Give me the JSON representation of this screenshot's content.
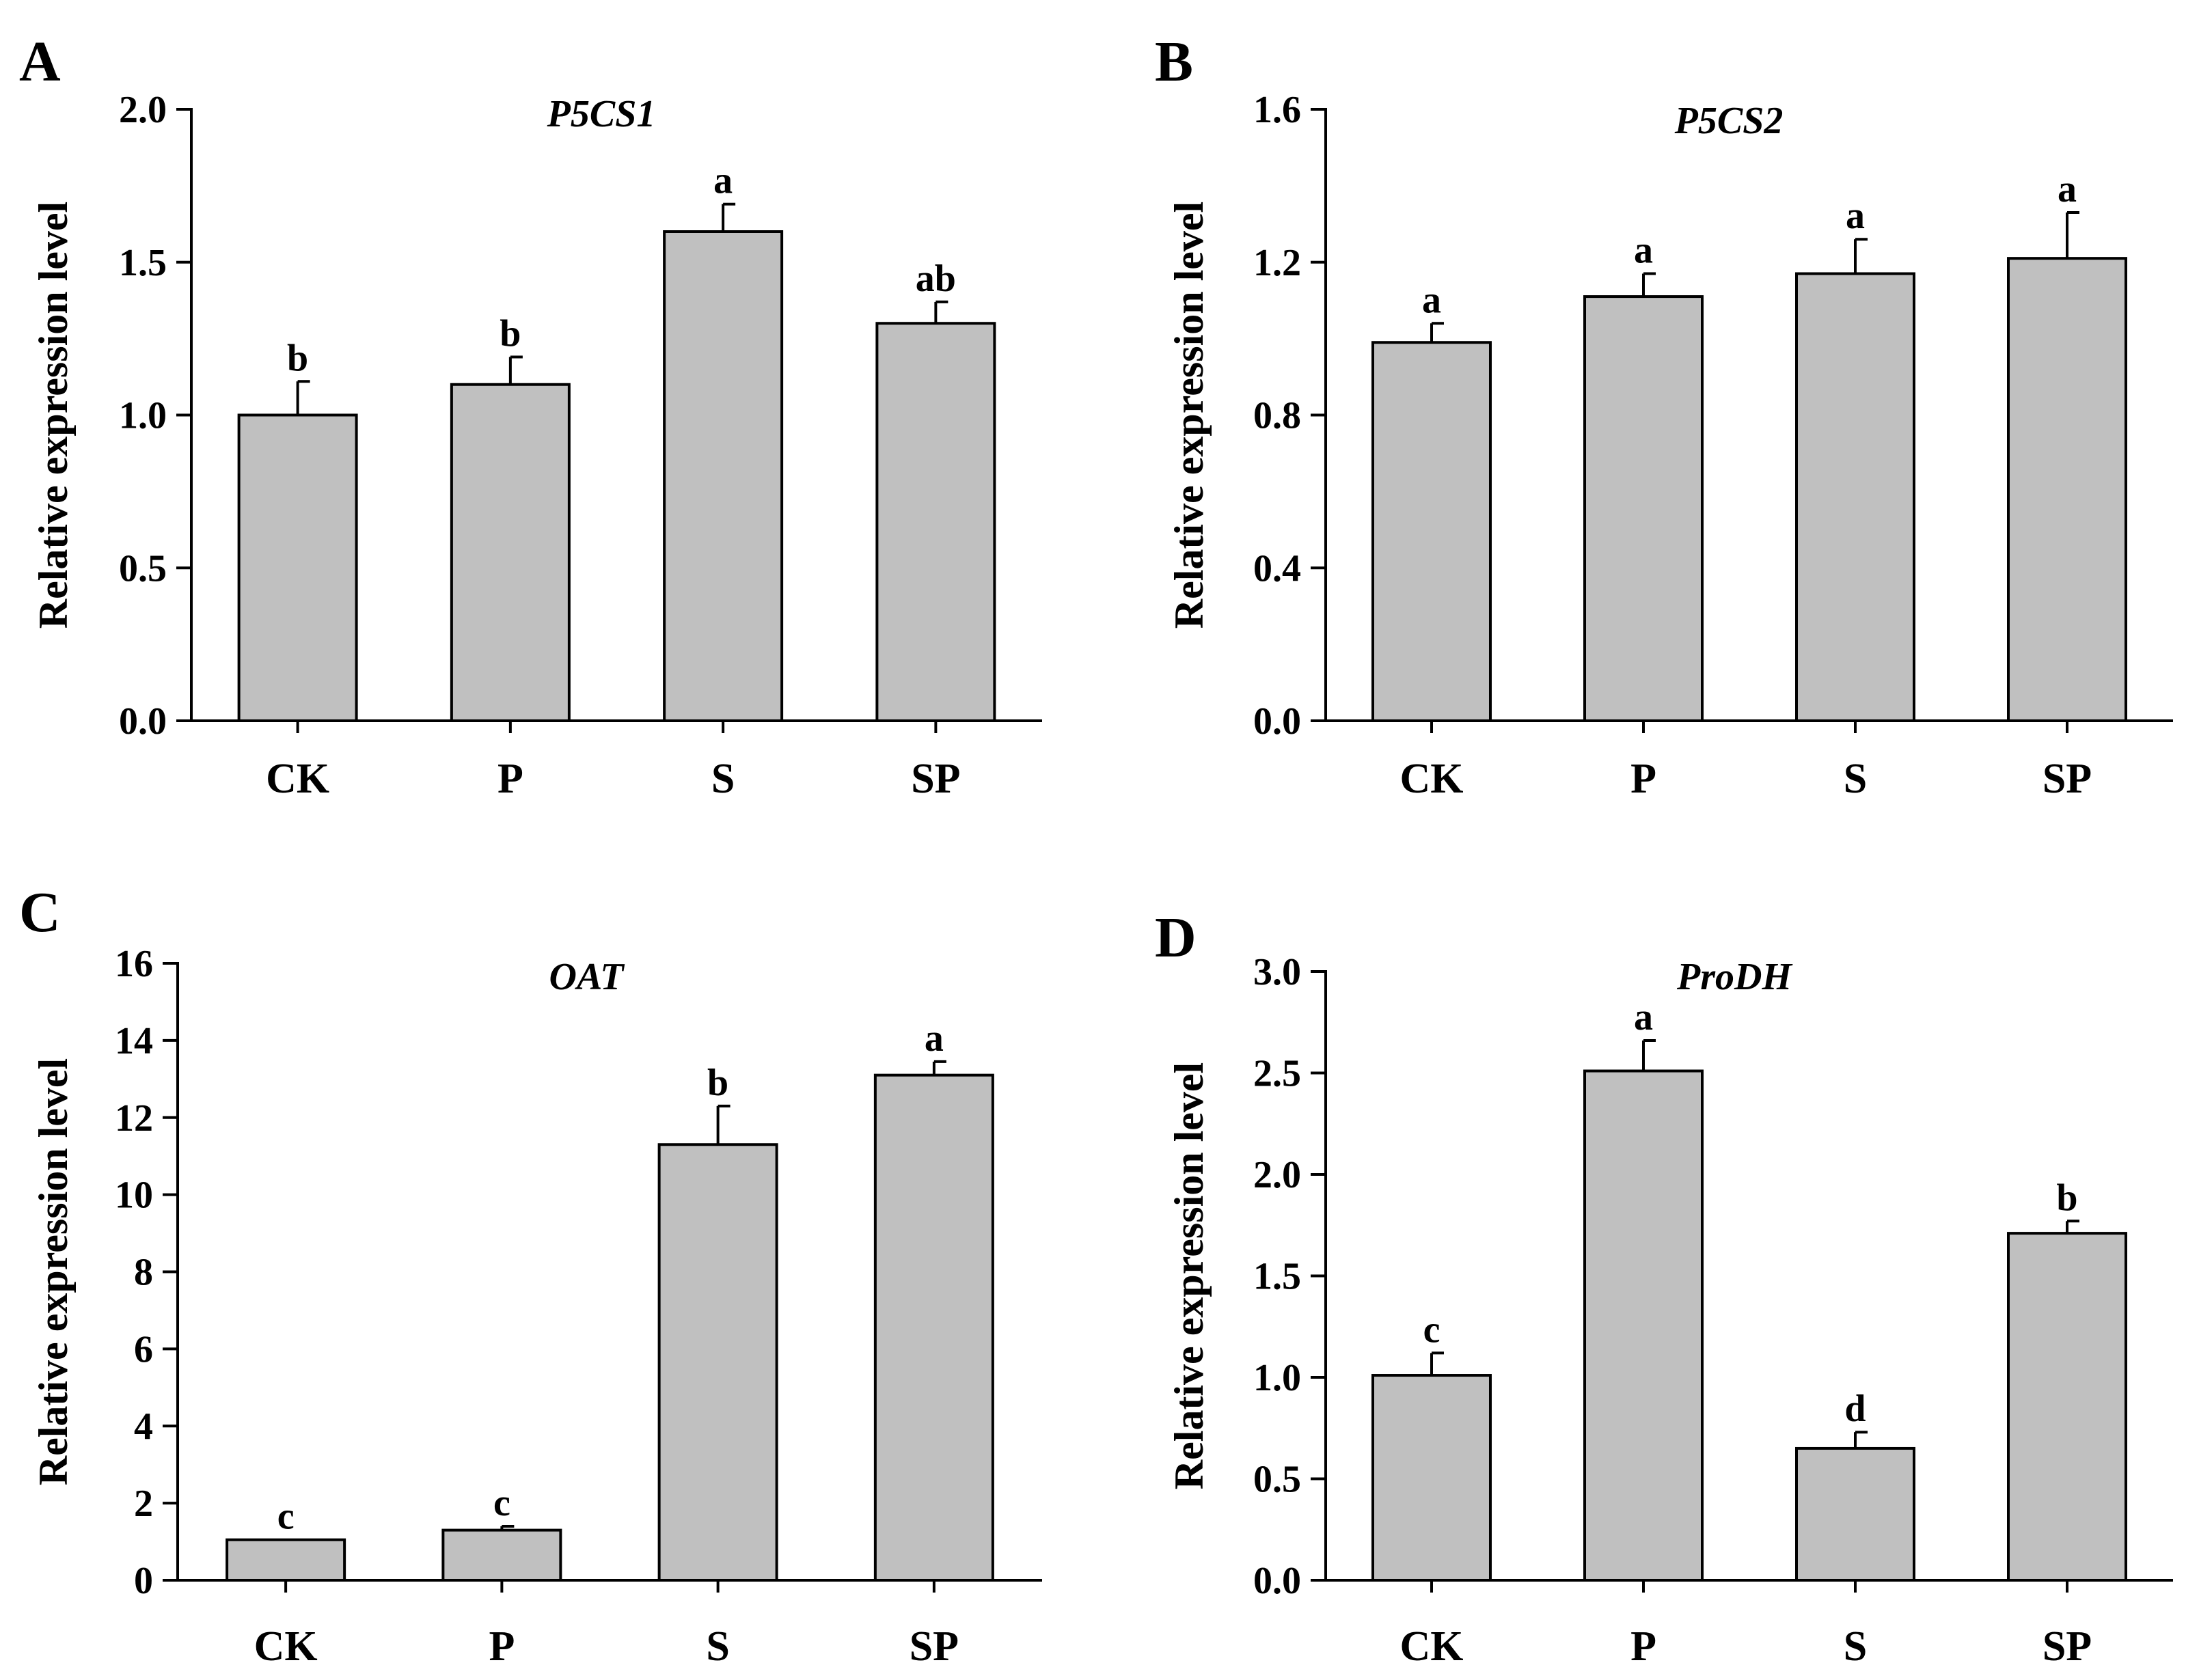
{
  "chart_data": [
    {
      "type": "bar",
      "panel": "A",
      "title": "P5CS1",
      "ylabel": "Relative expression level",
      "xlabel": "",
      "categories": [
        "CK",
        "P",
        "S",
        "SP"
      ],
      "values": [
        1.0,
        1.1,
        1.6,
        1.3
      ],
      "errors": [
        0.11,
        0.09,
        0.09,
        0.07
      ],
      "significance": [
        "b",
        "b",
        "a",
        "ab"
      ],
      "ylim": [
        0,
        2.0
      ],
      "yticks": [
        0.0,
        0.5,
        1.0,
        1.5,
        2.0
      ],
      "ytick_labels": [
        "0.0",
        "0.5",
        "1.0",
        "1.5",
        "2.0"
      ]
    },
    {
      "type": "bar",
      "panel": "B",
      "title": "P5CS2",
      "ylabel": "Relative expression level",
      "xlabel": "",
      "categories": [
        "CK",
        "P",
        "S",
        "SP"
      ],
      "values": [
        0.99,
        1.11,
        1.17,
        1.21
      ],
      "errors": [
        0.05,
        0.06,
        0.09,
        0.12
      ],
      "significance": [
        "a",
        "a",
        "a",
        "a"
      ],
      "ylim": [
        0,
        1.6
      ],
      "yticks": [
        0.0,
        0.4,
        0.8,
        1.2,
        1.6
      ],
      "ytick_labels": [
        "0.0",
        "0.4",
        "0.8",
        "1.2",
        "1.6"
      ]
    },
    {
      "type": "bar",
      "panel": "C",
      "title": "OAT",
      "ylabel": "Relative expression level",
      "xlabel": "",
      "categories": [
        "CK",
        "P",
        "S",
        "SP"
      ],
      "values": [
        1.05,
        1.3,
        11.3,
        13.1
      ],
      "errors": [
        0.0,
        0.1,
        1.0,
        0.35
      ],
      "significance": [
        "c",
        "c",
        "b",
        "a"
      ],
      "ylim": [
        0,
        16
      ],
      "yticks": [
        0,
        2,
        4,
        6,
        8,
        10,
        12,
        14,
        16
      ],
      "ytick_labels": [
        "0",
        "2",
        "4",
        "6",
        "8",
        "10",
        "12",
        "14",
        "16"
      ]
    },
    {
      "type": "bar",
      "panel": "D",
      "title": "ProDH",
      "ylabel": "Relative expression level",
      "xlabel": "",
      "categories": [
        "CK",
        "P",
        "S",
        "SP"
      ],
      "values": [
        1.01,
        2.51,
        0.65,
        1.71
      ],
      "errors": [
        0.11,
        0.15,
        0.08,
        0.06
      ],
      "significance": [
        "c",
        "a",
        "d",
        "b"
      ],
      "ylim": [
        0,
        3.0
      ],
      "yticks": [
        0.0,
        0.5,
        1.0,
        1.5,
        2.0,
        2.5,
        3.0
      ],
      "ytick_labels": [
        "0.0",
        "0.5",
        "1.0",
        "1.5",
        "2.0",
        "2.5",
        "3.0"
      ]
    }
  ],
  "colors": {
    "bar_fill": "#c0c0c0",
    "axis": "#000000",
    "background": "#ffffff"
  }
}
